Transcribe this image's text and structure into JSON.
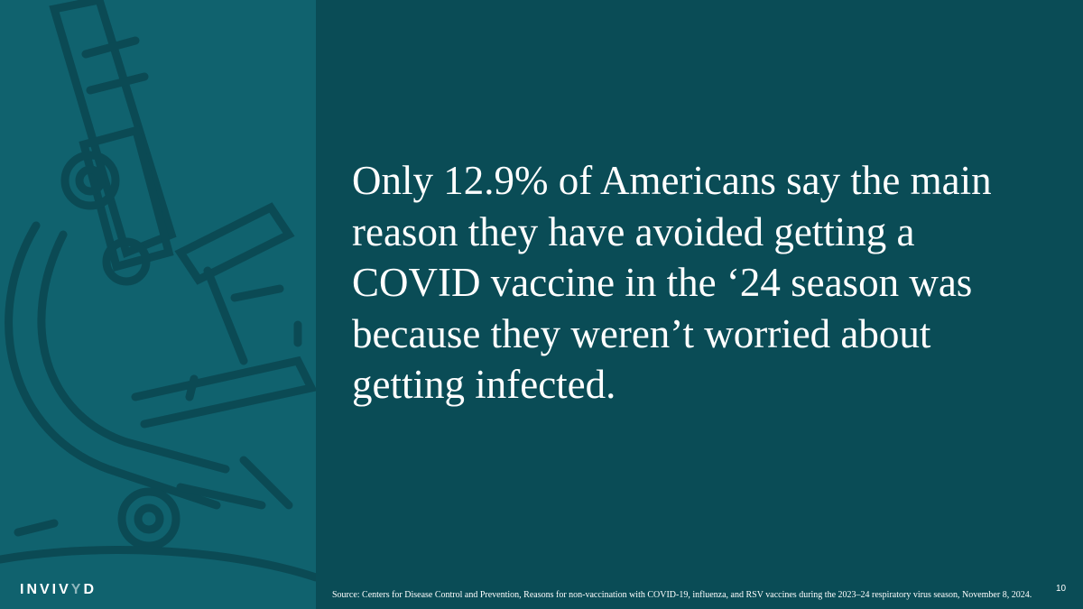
{
  "slide": {
    "headline": "Only 12.9% of Americans say the main reason they have avoided getting a COVID vaccine in the ‘24 season was because they weren’t worried about getting infected.",
    "source": "Source: Centers for Disease Control and Prevention, Reasons for non-vaccination with COVID-19, influenza, and RSV vaccines during the 2023–24 respiratory virus season, November 8, 2024.",
    "page_number": "10",
    "logo": {
      "text_main": "INVIV",
      "text_accent": "Y",
      "text_end": "D"
    }
  },
  "colors": {
    "left_panel": "#10626e",
    "background": "#0a4c56",
    "illustration": "#0b4a54",
    "text": "#ffffff"
  }
}
